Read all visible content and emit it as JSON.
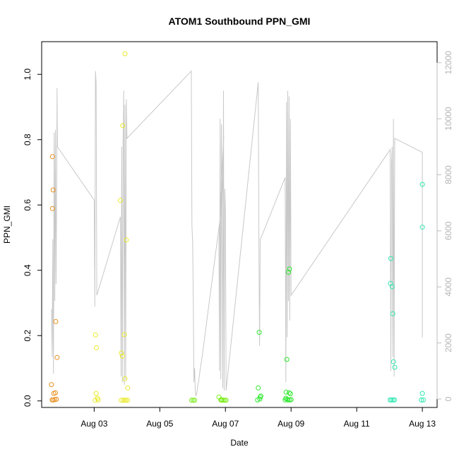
{
  "chart_data": {
    "type": "scatter",
    "title": "ATOM1 Southbound PPN_GMI",
    "xlabel": "Date",
    "ylabel": "PPN_GMI",
    "x_tick_labels": [
      "Aug 03",
      "Aug 05",
      "Aug 07",
      "Aug 09",
      "Aug 11",
      "Aug 13"
    ],
    "x_ticks_day": [
      3,
      5,
      7,
      9,
      11,
      13
    ],
    "xlim_day": [
      1.4,
      13.45
    ],
    "ylim": [
      -0.02,
      1.1
    ],
    "y_ticks": [
      0.0,
      0.2,
      0.4,
      0.6,
      0.8,
      1.0
    ],
    "y_tick_labels": [
      "0.0",
      "0.2",
      "0.4",
      "0.6",
      "0.8",
      "1.0"
    ],
    "secondary_axis": {
      "ylim": [
        -300,
        12750
      ],
      "ticks": [
        0,
        2000,
        4000,
        6000,
        8000,
        10000,
        12000
      ],
      "tick_labels": [
        "0",
        "2000",
        "4000",
        "6000",
        "8000",
        "10000",
        "12000"
      ],
      "color": "#bebebe"
    },
    "grid": false,
    "legend": "none",
    "line_color": "#c8c8c8",
    "series": [
      {
        "color": "#e8901f",
        "points": [
          [
            1.73,
            0.748
          ],
          [
            1.75,
            0.646
          ],
          [
            1.73,
            0.589
          ],
          [
            1.83,
            0.243
          ],
          [
            1.87,
            0.133
          ],
          [
            1.7,
            0.05
          ],
          [
            1.77,
            0.023
          ],
          [
            1.82,
            0.025
          ],
          [
            1.72,
            0.003
          ],
          [
            1.75,
            0.003
          ],
          [
            1.8,
            0.004
          ],
          [
            1.85,
            0.005
          ]
        ]
      },
      {
        "color": "#eaea2c",
        "points": [
          [
            3.94,
            1.063
          ],
          [
            3.87,
            0.843
          ],
          [
            3.8,
            0.614
          ],
          [
            3.98,
            0.493
          ],
          [
            3.92,
            0.203
          ],
          [
            3.04,
            0.202
          ],
          [
            3.07,
            0.163
          ],
          [
            3.83,
            0.147
          ],
          [
            3.86,
            0.137
          ],
          [
            3.94,
            0.068
          ],
          [
            4.02,
            0.04
          ],
          [
            3.06,
            0.023
          ],
          [
            3.1,
            0.008
          ],
          [
            3.03,
            0.002
          ],
          [
            3.12,
            0.003
          ],
          [
            3.82,
            0.002
          ],
          [
            3.88,
            0.002
          ],
          [
            3.93,
            0.002
          ],
          [
            3.97,
            0.002
          ],
          [
            4.02,
            0.002
          ]
        ]
      },
      {
        "color": "#7ced1e",
        "points": [
          [
            5.97,
            0.002
          ],
          [
            6.02,
            0.002
          ],
          [
            6.06,
            0.002
          ],
          [
            6.8,
            0.012
          ],
          [
            6.86,
            0.003
          ],
          [
            6.9,
            0.002
          ],
          [
            6.94,
            0.002
          ],
          [
            6.98,
            0.002
          ],
          [
            7.02,
            0.002
          ],
          [
            6.88,
            0.004
          ]
        ]
      },
      {
        "color": "#2ee82e",
        "points": [
          [
            8.03,
            0.21
          ],
          [
            8.0,
            0.04
          ],
          [
            8.08,
            0.015
          ],
          [
            8.06,
            0.012
          ],
          [
            8.05,
            0.006
          ],
          [
            7.98,
            0.003
          ],
          [
            8.95,
            0.404
          ],
          [
            8.92,
            0.394
          ],
          [
            8.87,
            0.127
          ],
          [
            8.85,
            0.027
          ],
          [
            8.94,
            0.025
          ],
          [
            8.98,
            0.022
          ],
          [
            8.84,
            0.008
          ],
          [
            8.88,
            0.005
          ],
          [
            8.91,
            0.003
          ],
          [
            8.96,
            0.003
          ],
          [
            9.0,
            0.004
          ],
          [
            8.82,
            0.003
          ]
        ]
      },
      {
        "color": "#2ee8b0",
        "points": [
          [
            13.0,
            0.663
          ],
          [
            13.0,
            0.532
          ],
          [
            12.04,
            0.436
          ],
          [
            12.03,
            0.36
          ],
          [
            12.08,
            0.35
          ],
          [
            12.1,
            0.267
          ],
          [
            12.12,
            0.12
          ],
          [
            12.16,
            0.103
          ],
          [
            13.0,
            0.023
          ],
          [
            12.02,
            0.003
          ],
          [
            12.06,
            0.003
          ],
          [
            12.11,
            0.003
          ],
          [
            12.15,
            0.003
          ],
          [
            12.97,
            0.003
          ],
          [
            13.03,
            0.003
          ]
        ]
      }
    ],
    "line_series": [
      [
        1.7,
        3200
      ],
      [
        1.72,
        1500
      ],
      [
        1.74,
        5700
      ],
      [
        1.76,
        900
      ],
      [
        1.78,
        9500
      ],
      [
        1.8,
        3500
      ],
      [
        1.82,
        9600
      ],
      [
        1.84,
        4100
      ],
      [
        1.86,
        8200
      ],
      [
        1.87,
        11100
      ],
      [
        1.88,
        9000
      ],
      [
        3.0,
        7100
      ],
      [
        3.02,
        3300
      ],
      [
        3.04,
        11700
      ],
      [
        3.06,
        11300
      ],
      [
        3.08,
        3700
      ],
      [
        3.8,
        6500
      ],
      [
        3.82,
        800
      ],
      [
        3.84,
        9000
      ],
      [
        3.86,
        600
      ],
      [
        3.88,
        9100
      ],
      [
        3.9,
        11000
      ],
      [
        3.92,
        500
      ],
      [
        3.94,
        10500
      ],
      [
        3.96,
        700
      ],
      [
        3.98,
        10700
      ],
      [
        4.0,
        9300
      ],
      [
        5.96,
        11700
      ],
      [
        5.98,
        6200
      ],
      [
        6.0,
        5600
      ],
      [
        6.02,
        3500
      ],
      [
        6.04,
        600
      ],
      [
        6.06,
        1100
      ],
      [
        6.08,
        300
      ],
      [
        6.1,
        100
      ],
      [
        6.12,
        200
      ],
      [
        6.14,
        300
      ],
      [
        6.16,
        500
      ],
      [
        6.18,
        600
      ],
      [
        6.2,
        800
      ],
      [
        6.3,
        1600
      ],
      [
        6.4,
        2500
      ],
      [
        6.5,
        3400
      ],
      [
        6.6,
        4300
      ],
      [
        6.7,
        5200
      ],
      [
        6.8,
        6100
      ],
      [
        6.9,
        7000
      ],
      [
        6.95,
        9400
      ],
      [
        6.8,
        5600
      ],
      [
        6.82,
        1000
      ],
      [
        6.84,
        10000
      ],
      [
        6.86,
        700
      ],
      [
        6.88,
        9800
      ],
      [
        6.9,
        6300
      ],
      [
        6.92,
        400
      ],
      [
        6.94,
        11000
      ],
      [
        6.96,
        300
      ],
      [
        6.98,
        7500
      ],
      [
        7.0,
        6800
      ],
      [
        7.02,
        300
      ],
      [
        8.0,
        11300
      ],
      [
        8.02,
        5200
      ],
      [
        8.04,
        1900
      ],
      [
        8.06,
        5700
      ],
      [
        8.1,
        5800
      ],
      [
        8.82,
        7900
      ],
      [
        8.84,
        600
      ],
      [
        8.86,
        10600
      ],
      [
        8.88,
        2200
      ],
      [
        8.9,
        11000
      ],
      [
        8.92,
        3500
      ],
      [
        8.94,
        10800
      ],
      [
        8.96,
        2800
      ],
      [
        8.98,
        10000
      ],
      [
        9.0,
        3700
      ],
      [
        12.02,
        8900
      ],
      [
        12.04,
        1000
      ],
      [
        12.06,
        8400
      ],
      [
        12.08,
        9000
      ],
      [
        12.1,
        1500
      ],
      [
        12.12,
        10000
      ],
      [
        12.14,
        800
      ],
      [
        12.16,
        9300
      ],
      [
        13.0,
        8800
      ],
      [
        13.0,
        2200
      ]
    ]
  }
}
